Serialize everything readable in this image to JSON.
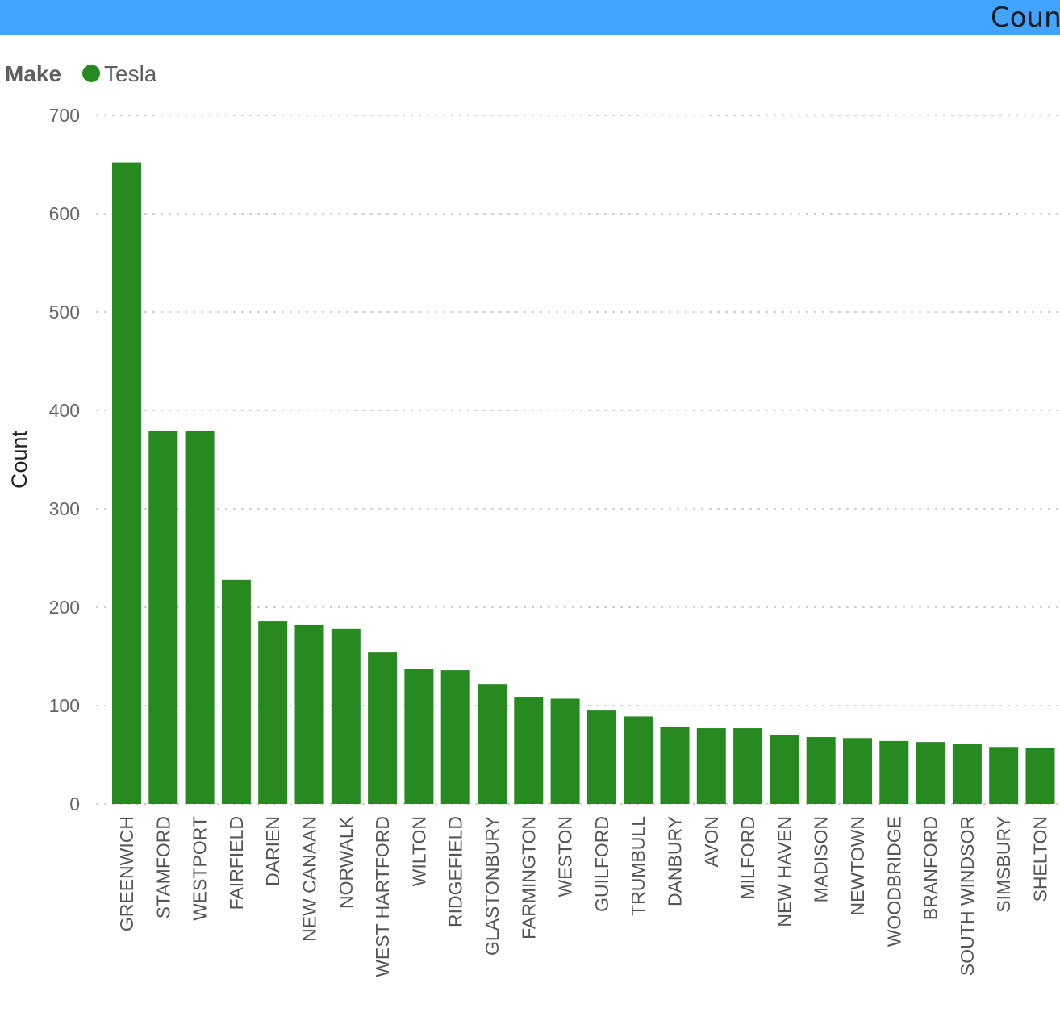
{
  "header": {
    "title": "Coun"
  },
  "legend": {
    "title": "Make",
    "label": "Tesla"
  },
  "chart_data": {
    "type": "bar",
    "title": "",
    "xlabel": "",
    "ylabel": "Count",
    "ylim": [
      0,
      700
    ],
    "yticks": [
      0,
      100,
      200,
      300,
      400,
      500,
      600,
      700
    ],
    "grid": true,
    "legend_position": "top-left",
    "categories": [
      "GREENWICH",
      "STAMFORD",
      "WESTPORT",
      "FAIRFIELD",
      "DARIEN",
      "NEW CANAAN",
      "NORWALK",
      "WEST HARTFORD",
      "WILTON",
      "RIDGEFIELD",
      "GLASTONBURY",
      "FARMINGTON",
      "WESTON",
      "GUILFORD",
      "TRUMBULL",
      "DANBURY",
      "AVON",
      "MILFORD",
      "NEW HAVEN",
      "MADISON",
      "NEWTOWN",
      "WOODBRIDGE",
      "BRANFORD",
      "SOUTH WINDSOR",
      "SIMSBURY",
      "SHELTON"
    ],
    "series": [
      {
        "name": "Tesla",
        "color": "#268a20",
        "values": [
          652,
          379,
          379,
          228,
          186,
          182,
          178,
          154,
          137,
          136,
          122,
          109,
          107,
          95,
          89,
          78,
          77,
          77,
          70,
          68,
          67,
          64,
          63,
          61,
          58,
          57
        ]
      }
    ]
  }
}
